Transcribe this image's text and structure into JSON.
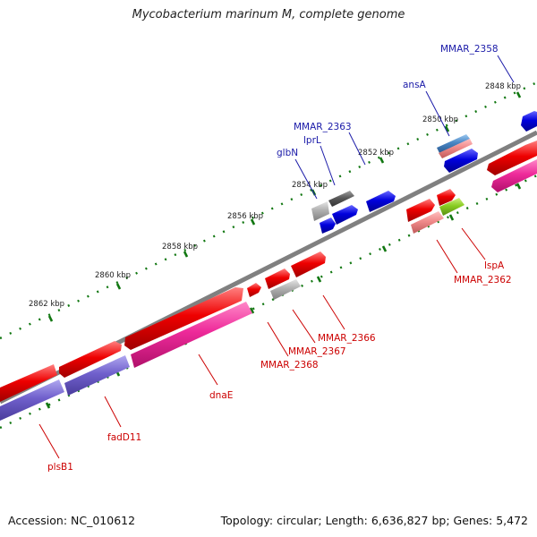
{
  "title": "Mycobacterium marinum M, complete genome",
  "footer": {
    "accession": "Accession: NC_010612",
    "topology": "Topology: circular; Length: 6,636,827 bp; Genes: 5,472"
  },
  "ticks": [
    "2848 kbp",
    "2850 kbp",
    "2852 kbp",
    "2854 kbp",
    "2856 kbp",
    "2858 kbp",
    "2860 kbp",
    "2862 kbp"
  ],
  "gene_labels_forward": [
    "MMAR_2358",
    "ansA",
    "MMAR_2363",
    "lprL",
    "glbN"
  ],
  "gene_labels_reverse": [
    "lspA",
    "MMAR_2362",
    "MMAR_2366",
    "MMAR_2367",
    "MMAR_2368",
    "dnaE",
    "fadD11",
    "plsB1"
  ],
  "colors": {
    "backbone": "#808080",
    "forward_gene": "#0000dd",
    "reverse_gene": "#ee0000",
    "reverse_gene_pink": "#ee2a9a",
    "purple_gene": "#7060cc",
    "gray_gene": "#aaaaaa",
    "dark_gray_gene": "#5a5a5a",
    "light_red_gene": "#f08a8a",
    "green_gene": "#88cc22",
    "steel_blue_gene": "#4a86c4",
    "tick_green": "#117711"
  }
}
